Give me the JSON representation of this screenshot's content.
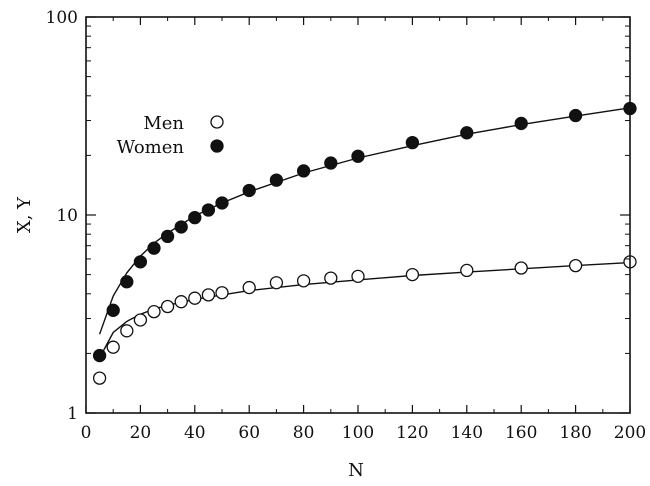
{
  "chart_data": {
    "type": "scatter",
    "xlabel": "N",
    "ylabel": "X, Y",
    "xlim": [
      0,
      200
    ],
    "ylim": [
      1,
      100
    ],
    "yscale": "log",
    "grid": false,
    "legend_position": "top-left",
    "x_ticks": [
      0,
      20,
      40,
      60,
      80,
      100,
      120,
      140,
      160,
      180,
      200
    ],
    "x_tick_labels": [
      "0",
      "20",
      "40",
      "60",
      "80",
      "100",
      "120",
      "140",
      "160",
      "180",
      "200"
    ],
    "y_ticks": [
      1,
      10,
      100
    ],
    "y_tick_labels": [
      "1",
      "10",
      "100"
    ],
    "series": [
      {
        "name": "Men",
        "marker": "open-circle",
        "x": [
          5,
          10,
          15,
          20,
          25,
          30,
          35,
          40,
          45,
          50,
          60,
          70,
          80,
          90,
          100,
          120,
          140,
          160,
          180,
          200
        ],
        "y": [
          1.5,
          2.15,
          2.6,
          2.95,
          3.25,
          3.45,
          3.65,
          3.8,
          3.95,
          4.05,
          4.3,
          4.55,
          4.65,
          4.8,
          4.9,
          5.0,
          5.25,
          5.4,
          5.55,
          5.8
        ],
        "fit": {
          "x": [
            5,
            10,
            15,
            20,
            25,
            30,
            40,
            50,
            60,
            80,
            100,
            120,
            140,
            160,
            180,
            200
          ],
          "y": [
            1.9,
            2.55,
            2.9,
            3.15,
            3.35,
            3.5,
            3.75,
            3.95,
            4.15,
            4.45,
            4.7,
            4.95,
            5.15,
            5.35,
            5.55,
            5.75
          ]
        }
      },
      {
        "name": "Women",
        "marker": "filled-circle",
        "x": [
          5,
          10,
          15,
          20,
          25,
          30,
          35,
          40,
          45,
          50,
          60,
          70,
          80,
          90,
          100,
          120,
          140,
          160,
          180,
          200
        ],
        "y": [
          1.95,
          3.3,
          4.6,
          5.8,
          6.8,
          7.8,
          8.7,
          9.7,
          10.6,
          11.5,
          13.3,
          15.0,
          16.7,
          18.3,
          19.8,
          23.2,
          26.0,
          29.0,
          31.8,
          34.5
        ],
        "fit": {
          "x": [
            5,
            10,
            15,
            20,
            25,
            30,
            40,
            50,
            60,
            80,
            100,
            120,
            140,
            160,
            180,
            200
          ],
          "y": [
            2.5,
            3.9,
            5.1,
            6.2,
            7.2,
            8.1,
            9.9,
            11.5,
            13.1,
            16.3,
            19.4,
            22.4,
            25.6,
            28.6,
            31.6,
            34.8
          ]
        }
      }
    ]
  },
  "colors": {
    "axis": "#111111",
    "marker_stroke": "#111111",
    "fit_line": "#111111",
    "background": "#ffffff"
  }
}
